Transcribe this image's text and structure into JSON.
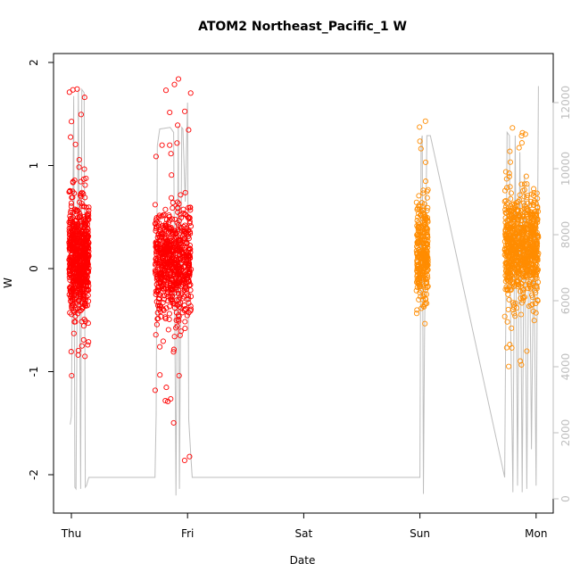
{
  "chart_data": {
    "type": "scatter",
    "title": "ATOM2 Northeast_Pacific_1 W",
    "xlabel": "Date",
    "ylabel": "W",
    "x_ticks": [
      "Thu",
      "Fri",
      "Sat",
      "Sun",
      "Mon"
    ],
    "y_ticks": [
      "-2",
      "-1",
      "0",
      "1",
      "2"
    ],
    "ylim": [
      -2.35,
      2.0
    ],
    "y2_ticks": [
      "0",
      "2000",
      "4000",
      "6000",
      "8000",
      "10000",
      "12000"
    ],
    "y2lim": [
      -250,
      12800
    ],
    "grid": false,
    "legend": "none",
    "colors": {
      "series_1": "#ff0000",
      "series_2": "#ff8c00",
      "depth_line": "#bebebe",
      "axis": "#000000",
      "axis_right": "#bebebe"
    },
    "series": [
      {
        "clusters": [
          {
            "x_range": [
              -0.02,
              0.15
            ],
            "y_mean": 0.1,
            "y_spread": 0.6,
            "y_min": -1.1,
            "y_max": 1.75,
            "n": 700
          },
          {
            "x_range": [
              0.72,
              1.03
            ],
            "y_mean": 0.05,
            "y_spread": 0.6,
            "y_min": -2.2,
            "y_max": 1.95,
            "n": 700
          }
        ]
      },
      {
        "clusters": [
          {
            "x_range": [
              2.97,
              3.07
            ],
            "y_mean": 0.15,
            "y_spread": 0.55,
            "y_min": -0.55,
            "y_max": 1.45,
            "n": 300
          },
          {
            "x_range": [
              3.73,
              4.02
            ],
            "y_mean": 0.2,
            "y_spread": 0.55,
            "y_min": -0.95,
            "y_max": 1.4,
            "n": 800
          }
        ]
      }
    ],
    "depth_series": {
      "x": [
        -0.01,
        0.0,
        0.02,
        0.03,
        0.04,
        0.06,
        0.08,
        0.09,
        0.1,
        0.11,
        0.12,
        0.13,
        0.15,
        0.16,
        0.72,
        0.73,
        0.74,
        0.76,
        0.85,
        0.86,
        0.88,
        0.9,
        0.92,
        0.93,
        0.95,
        0.96,
        0.98,
        1.0,
        1.01,
        1.02,
        1.03,
        1.04,
        3.0,
        3.01,
        3.02,
        3.03,
        3.04,
        3.06,
        3.07,
        3.08,
        3.09,
        3.73,
        3.75,
        3.77,
        3.78,
        3.8,
        3.82,
        3.84,
        3.86,
        3.88,
        3.9,
        3.92,
        3.94,
        3.96,
        3.98,
        4.0,
        4.02
      ],
      "y": [
        2250,
        2500,
        12200,
        350,
        300,
        12400,
        300,
        12400,
        12350,
        12300,
        350,
        400,
        650,
        650,
        650,
        2550,
        10700,
        11200,
        11250,
        11200,
        11100,
        100,
        11300,
        300,
        11250,
        11200,
        9000,
        12000,
        2400,
        1800,
        1200,
        650,
        650,
        10800,
        11000,
        150,
        5000,
        11000,
        11000,
        11000,
        11000,
        650,
        11100,
        11000,
        5500,
        200,
        11000,
        400,
        10500,
        200,
        9800,
        300,
        9500,
        1500,
        8000,
        400,
        12500
      ]
    }
  }
}
